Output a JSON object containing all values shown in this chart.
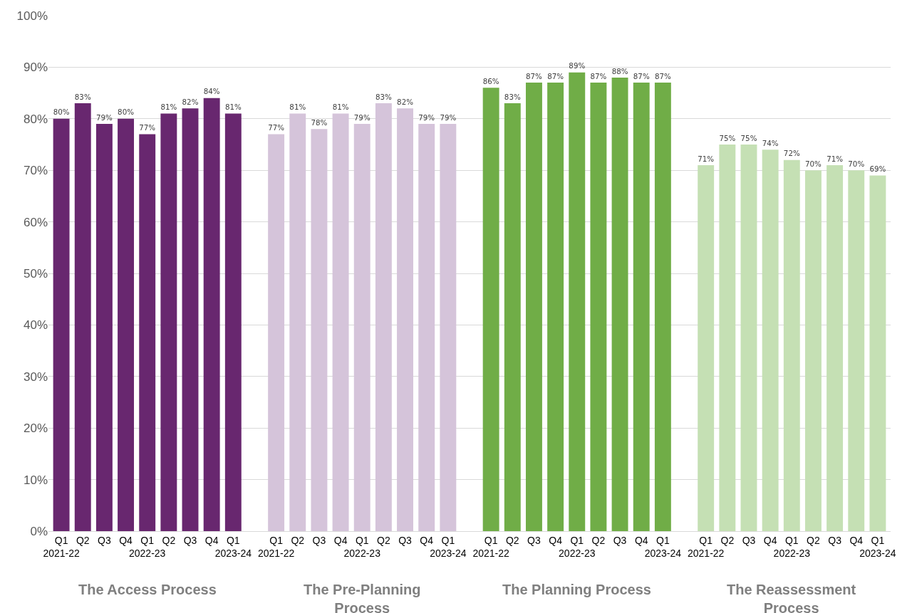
{
  "chart_data": {
    "type": "bar",
    "categories": [
      "Q1\n2021-22",
      "Q2",
      "Q3",
      "Q4",
      "Q1\n2022-23",
      "Q2",
      "Q3",
      "Q4",
      "Q1\n2023-24",
      "Q1\n2021-22",
      "Q2",
      "Q3",
      "Q4",
      "Q1\n2022-23",
      "Q2",
      "Q3",
      "Q4",
      "Q1\n2023-24",
      "Q1\n2021-22",
      "Q2",
      "Q3",
      "Q4",
      "Q1\n2022-23",
      "Q2",
      "Q3",
      "Q4",
      "Q1\n2023-24",
      "Q1\n2021-22",
      "Q2",
      "Q3",
      "Q4",
      "Q1\n2022-23",
      "Q2",
      "Q3",
      "Q4",
      "Q1\n2023-24"
    ],
    "series": [
      {
        "color": "#68276f",
        "values": [
          80,
          83,
          79,
          80,
          77,
          81,
          82,
          84,
          81,
          null,
          null,
          null,
          null,
          null,
          null,
          null,
          null,
          null,
          null,
          null,
          null,
          null,
          null,
          null,
          null,
          null,
          null,
          null,
          null,
          null,
          null,
          null,
          null,
          null,
          null,
          null
        ],
        "value_labels": [
          "80%",
          "83%",
          "79%",
          "80%",
          "77%",
          "81%",
          "82%",
          "84%",
          "81%",
          null,
          null,
          null,
          null,
          null,
          null,
          null,
          null,
          null,
          null,
          null,
          null,
          null,
          null,
          null,
          null,
          null,
          null,
          null,
          null,
          null,
          null,
          null,
          null,
          null,
          null,
          null
        ]
      },
      {
        "color": "#d5c4da",
        "values": [
          null,
          null,
          null,
          null,
          null,
          null,
          null,
          null,
          null,
          77,
          81,
          78,
          81,
          79,
          83,
          82,
          79,
          79,
          null,
          null,
          null,
          null,
          null,
          null,
          null,
          null,
          null,
          null,
          null,
          null,
          null,
          null,
          null,
          null,
          null,
          null
        ],
        "value_labels": [
          null,
          null,
          null,
          null,
          null,
          null,
          null,
          null,
          null,
          "77%",
          "81%",
          "78%",
          "81%",
          "79%",
          "83%",
          "82%",
          "79%",
          "79%",
          null,
          null,
          null,
          null,
          null,
          null,
          null,
          null,
          null,
          null,
          null,
          null,
          null,
          null,
          null,
          null,
          null,
          null
        ]
      },
      {
        "color": "#70ad47",
        "values": [
          null,
          null,
          null,
          null,
          null,
          null,
          null,
          null,
          null,
          null,
          null,
          null,
          null,
          null,
          null,
          null,
          null,
          null,
          86,
          83,
          87,
          87,
          89,
          87,
          88,
          87,
          87,
          null,
          null,
          null,
          null,
          null,
          null,
          null,
          null,
          null
        ],
        "value_labels": [
          null,
          null,
          null,
          null,
          null,
          null,
          null,
          null,
          null,
          null,
          null,
          null,
          null,
          null,
          null,
          null,
          null,
          null,
          "86%",
          "83%",
          "87%",
          "87%",
          "89%",
          "87%",
          "88%",
          "87%",
          "87%",
          null,
          null,
          null,
          null,
          null,
          null,
          null,
          null,
          null
        ]
      },
      {
        "color": "#c5e0b4",
        "values": [
          null,
          null,
          null,
          null,
          null,
          null,
          null,
          null,
          null,
          null,
          null,
          null,
          null,
          null,
          null,
          null,
          null,
          null,
          null,
          null,
          null,
          null,
          null,
          null,
          null,
          null,
          null,
          71,
          75,
          75,
          74,
          72,
          70,
          71,
          70,
          69
        ],
        "value_labels": [
          null,
          null,
          null,
          null,
          null,
          null,
          null,
          null,
          null,
          null,
          null,
          null,
          null,
          null,
          null,
          null,
          null,
          null,
          null,
          null,
          null,
          null,
          null,
          null,
          null,
          null,
          null,
          "71%",
          "75%",
          "75%",
          "74%",
          "72%",
          "70%",
          "71%",
          "70%",
          "69%"
        ]
      }
    ],
    "ylim": [
      0,
      100
    ],
    "yticks": [
      {
        "value": 0,
        "label": "0%"
      },
      {
        "value": 10,
        "label": "10%"
      },
      {
        "value": 20,
        "label": "20%"
      },
      {
        "value": 30,
        "label": "30%"
      },
      {
        "value": 40,
        "label": "40%"
      },
      {
        "value": 50,
        "label": "50%"
      },
      {
        "value": 60,
        "label": "60%"
      },
      {
        "value": 70,
        "label": "70%"
      },
      {
        "value": 80,
        "label": "80%"
      },
      {
        "value": 90,
        "label": "90%"
      },
      {
        "value": 100,
        "label": "100%"
      }
    ],
    "annotations": [
      "The Access Process",
      "The Pre-Planning Process",
      "The Planning Process",
      "The Reassessment Process"
    ],
    "grid": "y",
    "legend": false
  }
}
